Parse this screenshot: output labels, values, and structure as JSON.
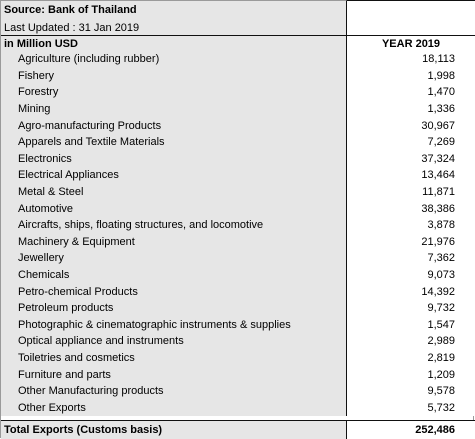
{
  "header": {
    "source": "Source: Bank of Thailand",
    "last_updated": "Last Updated : 31 Jan 2019",
    "unit": "in Million USD",
    "column": "YEAR 2019"
  },
  "rows": [
    {
      "label": "Agriculture (including rubber)",
      "value": "18,113"
    },
    {
      "label": "Fishery",
      "value": "1,998"
    },
    {
      "label": "Forestry",
      "value": "1,470"
    },
    {
      "label": "Mining",
      "value": "1,336"
    },
    {
      "label": "Agro-manufacturing Products",
      "value": "30,967"
    },
    {
      "label": "Apparels and Textile Materials",
      "value": "7,269"
    },
    {
      "label": "Electronics",
      "value": "37,324"
    },
    {
      "label": "Electrical Appliances",
      "value": "13,464"
    },
    {
      "label": "Metal & Steel",
      "value": "11,871"
    },
    {
      "label": "Automotive",
      "value": "38,386"
    },
    {
      "label": "Aircrafts, ships, floating structures, and locomotive",
      "value": "3,878"
    },
    {
      "label": "Machinery & Equipment",
      "value": "21,976"
    },
    {
      "label": "Jewellery",
      "value": "7,362"
    },
    {
      "label": "Chemicals",
      "value": "9,073"
    },
    {
      "label": "Petro-chemical Products",
      "value": "14,392"
    },
    {
      "label": "Petroleum products",
      "value": "9,732"
    },
    {
      "label": "Photographic & cinematographic instruments & supplies",
      "value": "1,547"
    },
    {
      "label": "Optical appliance and instruments",
      "value": "2,989"
    },
    {
      "label": "Toiletries and cosmetics",
      "value": "2,819"
    },
    {
      "label": "Furniture and parts",
      "value": "1,209"
    },
    {
      "label": "Other Manufacturing products",
      "value": "9,578"
    },
    {
      "label": "Other Exports",
      "value": "5,732"
    }
  ],
  "total": {
    "label": "Total Exports (Customs basis)",
    "value": "252,486"
  }
}
